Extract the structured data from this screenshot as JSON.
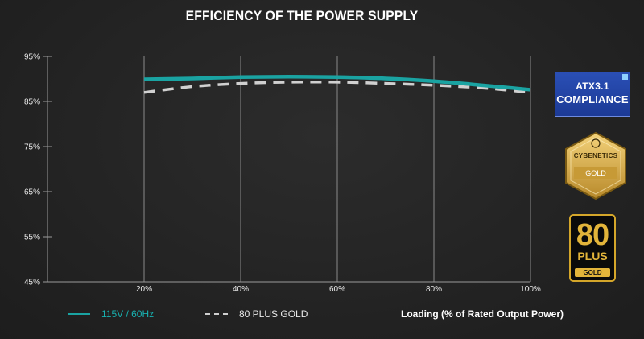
{
  "chart_data": {
    "type": "line",
    "title": "EFFICIENCY OF THE POWER SUPPLY",
    "xlabel": "Loading (% of Rated Output Power)",
    "ylabel": "",
    "x": [
      20,
      30,
      40,
      50,
      60,
      70,
      80,
      90,
      100
    ],
    "xlim": [
      0,
      100
    ],
    "ylim": [
      45,
      95
    ],
    "x_ticks": [
      20,
      40,
      60,
      80,
      100
    ],
    "x_tick_labels": [
      "20%",
      "40%",
      "60%",
      "80%",
      "100%"
    ],
    "y_ticks": [
      45,
      55,
      65,
      75,
      85,
      95
    ],
    "y_tick_labels": [
      "45%",
      "55%",
      "65%",
      "75%",
      "85%",
      "95%"
    ],
    "grid": true,
    "series": [
      {
        "name": "115V / 60Hz",
        "color": "#1aa3a2",
        "style": "solid",
        "values": [
          89.9,
          90.1,
          90.4,
          90.5,
          90.4,
          90.1,
          89.5,
          88.6,
          87.6
        ]
      },
      {
        "name": "80 PLUS GOLD",
        "color": "#d0d0d0",
        "style": "dashed",
        "values": [
          87.0,
          88.3,
          89.0,
          89.3,
          89.3,
          89.0,
          88.6,
          88.0,
          87.0
        ]
      }
    ]
  },
  "badges": {
    "atx_line1": "ATX3.1",
    "atx_line2": "COMPLIANCE",
    "cyb_line1": "CYBENETICS",
    "cyb_line2": "GOLD",
    "plus_number": "80",
    "plus_word": "PLUS",
    "plus_grade": "GOLD"
  }
}
